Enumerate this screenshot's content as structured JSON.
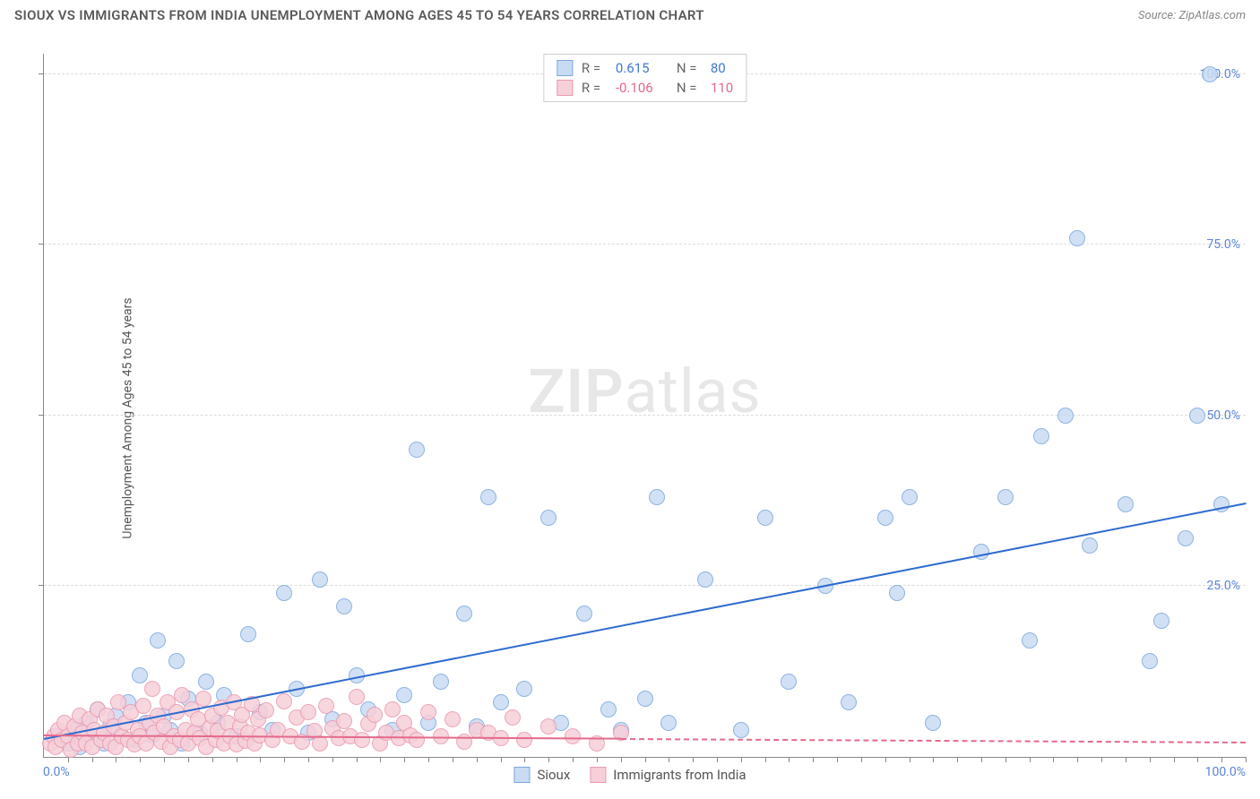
{
  "title": "SIOUX VS IMMIGRANTS FROM INDIA UNEMPLOYMENT AMONG AGES 45 TO 54 YEARS CORRELATION CHART",
  "source_label": "Source: ",
  "source_name": "ZipAtlas.com",
  "ylabel": "Unemployment Among Ages 45 to 54 years",
  "watermark_a": "ZIP",
  "watermark_b": "atlas",
  "chart": {
    "type": "scatter",
    "xlim": [
      0,
      100
    ],
    "ylim": [
      0,
      103
    ],
    "xticks": [
      {
        "v": 0,
        "label": "0.0%"
      },
      {
        "v": 100,
        "label": "100.0%"
      }
    ],
    "xtick_minor_step": 2,
    "yticks": [
      {
        "v": 25,
        "label": "25.0%"
      },
      {
        "v": 50,
        "label": "50.0%"
      },
      {
        "v": 75,
        "label": "75.0%"
      },
      {
        "v": 100,
        "label": "100.0%"
      }
    ],
    "grid_color": "#dcdcdc",
    "axis_color": "#888888",
    "background": "#ffffff",
    "tick_label_color": "#5b84d6",
    "marker_radius": 9,
    "marker_stroke_width": 1.5
  },
  "series": [
    {
      "name": "Sioux",
      "fill": "#c9dbf3",
      "stroke": "#7ca7de",
      "r_label": "R =",
      "r_value": "0.615",
      "r_color": "#3f77d6",
      "n_label": "N =",
      "n_value": "80",
      "n_color": "#3f77d6",
      "trend": {
        "x1": 0,
        "y1": 2.5,
        "x2": 100,
        "y2": 37,
        "color": "#2e6bd0",
        "solid_until_x": 100
      },
      "points": [
        [
          1,
          3
        ],
        [
          2,
          2
        ],
        [
          2.5,
          4
        ],
        [
          3,
          1.5
        ],
        [
          3.5,
          5
        ],
        [
          4,
          3
        ],
        [
          4.5,
          7
        ],
        [
          5,
          2
        ],
        [
          5.5,
          4.5
        ],
        [
          6,
          6
        ],
        [
          6.5,
          3
        ],
        [
          7,
          8
        ],
        [
          7.5,
          2.5
        ],
        [
          8,
          12
        ],
        [
          8.5,
          5
        ],
        [
          9,
          3.2
        ],
        [
          9.5,
          17
        ],
        [
          10,
          6
        ],
        [
          10.5,
          4
        ],
        [
          11,
          14
        ],
        [
          11.5,
          2
        ],
        [
          12,
          8.5
        ],
        [
          13,
          3.5
        ],
        [
          13.5,
          11
        ],
        [
          14.5,
          5
        ],
        [
          15,
          9
        ],
        [
          16,
          3
        ],
        [
          17,
          18
        ],
        [
          18,
          6.5
        ],
        [
          19,
          4
        ],
        [
          20,
          24
        ],
        [
          21,
          10
        ],
        [
          22,
          3.5
        ],
        [
          23,
          26
        ],
        [
          24,
          5.5
        ],
        [
          25,
          22
        ],
        [
          26,
          12
        ],
        [
          27,
          7
        ],
        [
          29,
          4
        ],
        [
          30,
          9
        ],
        [
          31,
          45
        ],
        [
          32,
          5
        ],
        [
          33,
          11
        ],
        [
          35,
          21
        ],
        [
          36,
          4.5
        ],
        [
          37,
          38
        ],
        [
          38,
          8
        ],
        [
          40,
          10
        ],
        [
          42,
          35
        ],
        [
          43,
          5
        ],
        [
          45,
          21
        ],
        [
          47,
          7
        ],
        [
          48,
          4
        ],
        [
          50,
          8.5
        ],
        [
          51,
          38
        ],
        [
          52,
          5
        ],
        [
          55,
          26
        ],
        [
          58,
          4
        ],
        [
          60,
          35
        ],
        [
          62,
          11
        ],
        [
          65,
          25
        ],
        [
          67,
          8
        ],
        [
          70,
          35
        ],
        [
          71,
          24
        ],
        [
          72,
          38
        ],
        [
          74,
          5
        ],
        [
          78,
          30
        ],
        [
          80,
          38
        ],
        [
          82,
          17
        ],
        [
          83,
          47
        ],
        [
          85,
          50
        ],
        [
          86,
          76
        ],
        [
          87,
          31
        ],
        [
          90,
          37
        ],
        [
          92,
          14
        ],
        [
          93,
          20
        ],
        [
          95,
          32
        ],
        [
          96,
          50
        ],
        [
          97,
          100
        ],
        [
          98,
          37
        ]
      ]
    },
    {
      "name": "Immigrants from India",
      "fill": "#f6cfd9",
      "stroke": "#e99ab0",
      "r_label": "R =",
      "r_value": "-0.106",
      "r_color": "#e46a8c",
      "n_label": "N =",
      "n_value": "110",
      "n_color": "#e46a8c",
      "trend": {
        "x1": 0,
        "y1": 3,
        "x2": 100,
        "y2": 2,
        "color": "#e46a8c",
        "solid_until_x": 48
      },
      "points": [
        [
          0.5,
          2
        ],
        [
          0.8,
          3
        ],
        [
          1,
          1.5
        ],
        [
          1.2,
          4
        ],
        [
          1.5,
          2.5
        ],
        [
          1.7,
          5
        ],
        [
          2,
          3
        ],
        [
          2.2,
          1
        ],
        [
          2.5,
          4.5
        ],
        [
          2.8,
          2
        ],
        [
          3,
          6
        ],
        [
          3.2,
          3.5
        ],
        [
          3.5,
          2
        ],
        [
          3.8,
          5.5
        ],
        [
          4,
          1.5
        ],
        [
          4.2,
          4
        ],
        [
          4.5,
          7
        ],
        [
          4.8,
          2.5
        ],
        [
          5,
          3.5
        ],
        [
          5.2,
          6
        ],
        [
          5.5,
          2
        ],
        [
          5.8,
          4.5
        ],
        [
          6,
          1.5
        ],
        [
          6.2,
          8
        ],
        [
          6.5,
          3
        ],
        [
          6.8,
          5
        ],
        [
          7,
          2.5
        ],
        [
          7.2,
          6.5
        ],
        [
          7.5,
          1.8
        ],
        [
          7.8,
          4
        ],
        [
          8,
          3
        ],
        [
          8.3,
          7.5
        ],
        [
          8.5,
          2
        ],
        [
          8.8,
          5
        ],
        [
          9,
          10
        ],
        [
          9.2,
          3.5
        ],
        [
          9.5,
          6
        ],
        [
          9.8,
          2.2
        ],
        [
          10,
          4.5
        ],
        [
          10.3,
          8
        ],
        [
          10.5,
          1.5
        ],
        [
          10.8,
          3
        ],
        [
          11,
          6.5
        ],
        [
          11.3,
          2.5
        ],
        [
          11.5,
          9
        ],
        [
          11.8,
          4
        ],
        [
          12,
          2
        ],
        [
          12.3,
          7
        ],
        [
          12.5,
          3.5
        ],
        [
          12.8,
          5.5
        ],
        [
          13,
          2.8
        ],
        [
          13.3,
          8.5
        ],
        [
          13.5,
          1.5
        ],
        [
          13.8,
          4.2
        ],
        [
          14,
          6
        ],
        [
          14.3,
          2.5
        ],
        [
          14.5,
          3.8
        ],
        [
          14.8,
          7.2
        ],
        [
          15,
          2
        ],
        [
          15.3,
          5
        ],
        [
          15.5,
          3
        ],
        [
          15.8,
          8
        ],
        [
          16,
          1.8
        ],
        [
          16.3,
          4.5
        ],
        [
          16.5,
          6.2
        ],
        [
          16.8,
          2.3
        ],
        [
          17,
          3.5
        ],
        [
          17.3,
          7.8
        ],
        [
          17.5,
          2
        ],
        [
          17.8,
          5.5
        ],
        [
          18,
          3.2
        ],
        [
          18.5,
          6.8
        ],
        [
          19,
          2.5
        ],
        [
          19.5,
          4
        ],
        [
          20,
          8.2
        ],
        [
          20.5,
          3
        ],
        [
          21,
          5.8
        ],
        [
          21.5,
          2.2
        ],
        [
          22,
          6.5
        ],
        [
          22.5,
          3.8
        ],
        [
          23,
          2
        ],
        [
          23.5,
          7.5
        ],
        [
          24,
          4.2
        ],
        [
          24.5,
          2.8
        ],
        [
          25,
          5.2
        ],
        [
          25.5,
          3
        ],
        [
          26,
          8.8
        ],
        [
          26.5,
          2.5
        ],
        [
          27,
          4.8
        ],
        [
          27.5,
          6.2
        ],
        [
          28,
          2
        ],
        [
          28.5,
          3.5
        ],
        [
          29,
          7
        ],
        [
          29.5,
          2.8
        ],
        [
          30,
          5
        ],
        [
          30.5,
          3.2
        ],
        [
          31,
          2.5
        ],
        [
          32,
          6.5
        ],
        [
          33,
          3
        ],
        [
          34,
          5.5
        ],
        [
          35,
          2.2
        ],
        [
          36,
          4
        ],
        [
          37,
          3.5
        ],
        [
          38,
          2.8
        ],
        [
          39,
          5.8
        ],
        [
          40,
          2.5
        ],
        [
          42,
          4.5
        ],
        [
          44,
          3
        ],
        [
          46,
          2
        ],
        [
          48,
          3.5
        ]
      ]
    }
  ],
  "legend": {
    "series1_label": "Sioux",
    "series2_label": "Immigrants from India"
  }
}
